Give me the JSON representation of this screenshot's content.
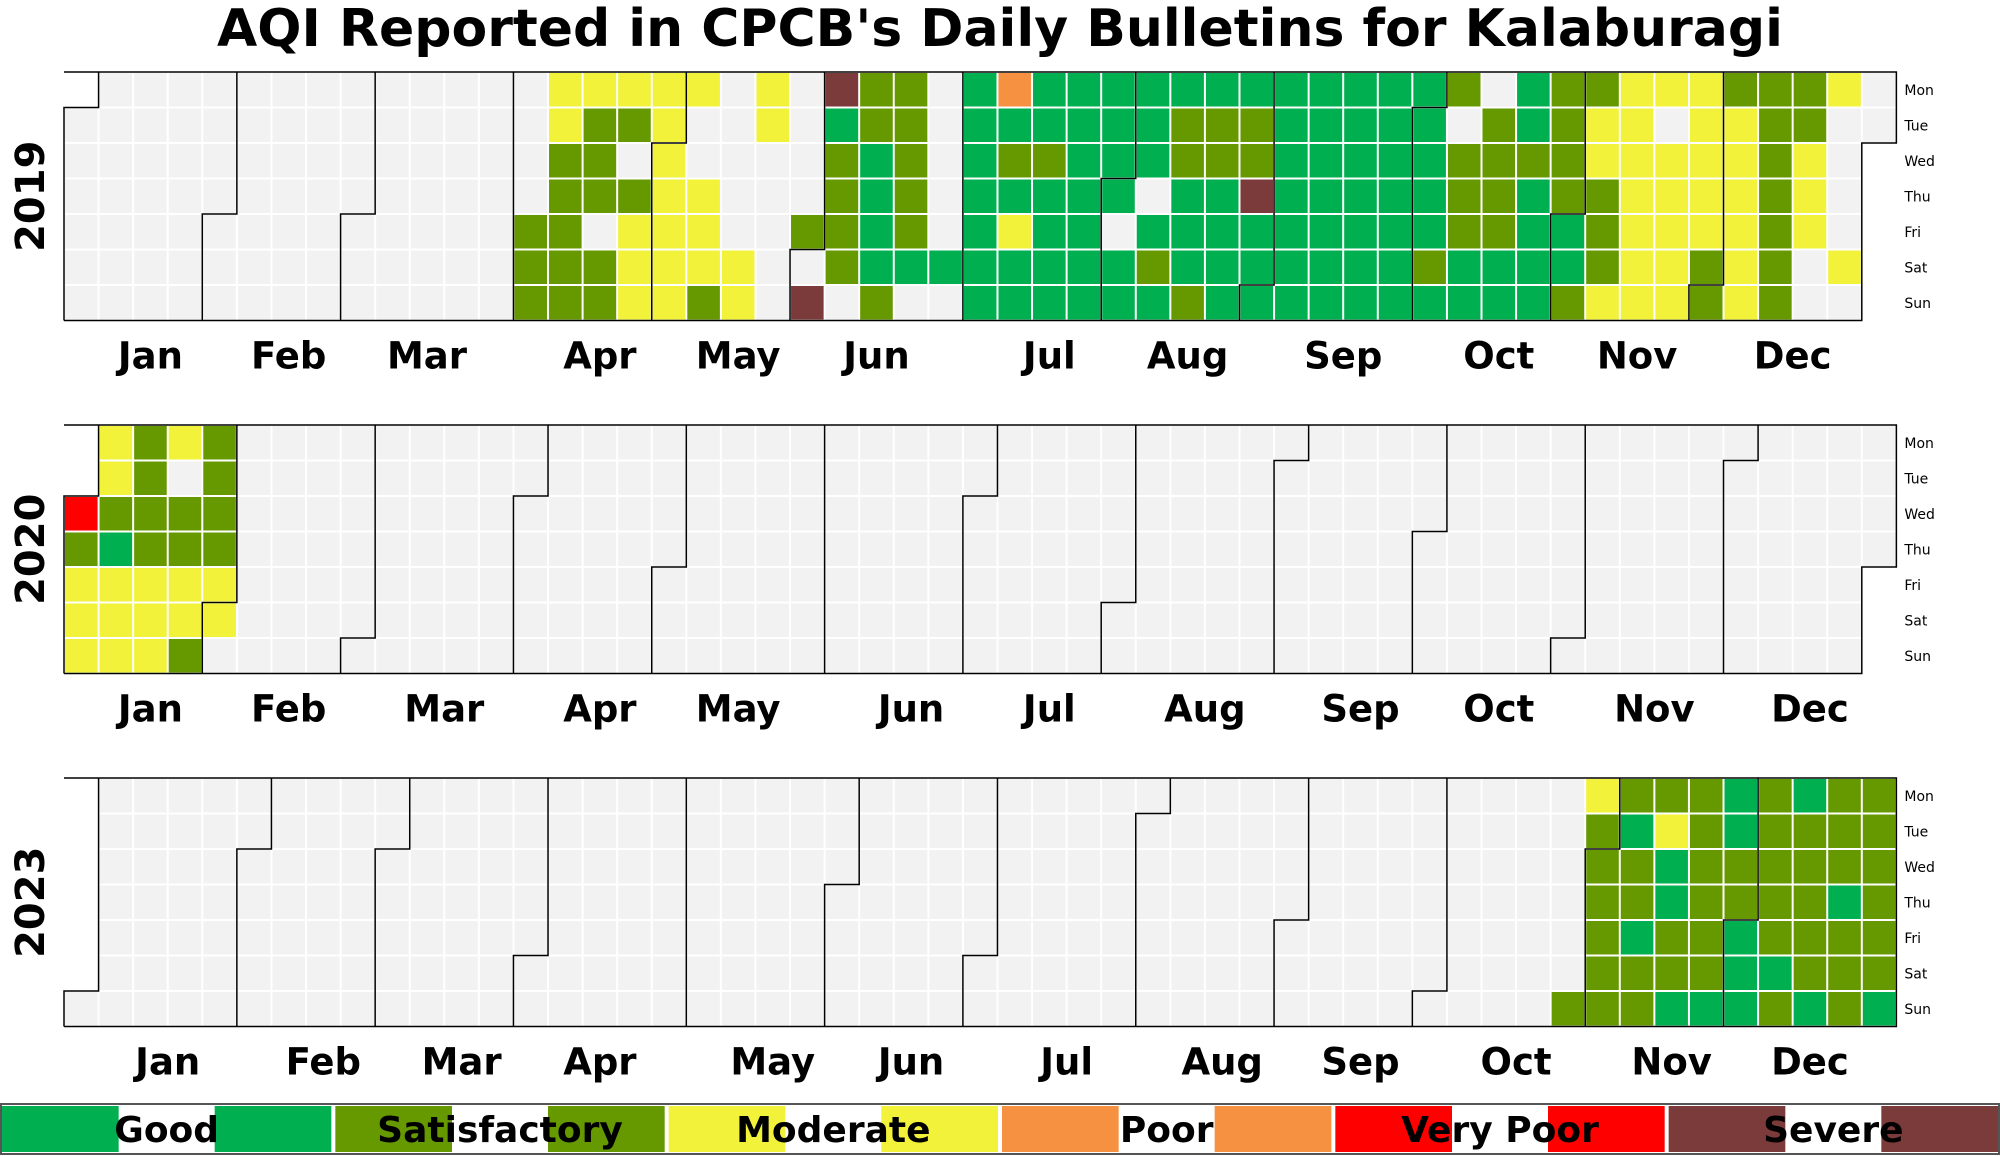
{
  "chart_data": {
    "type": "heatmap",
    "title": "AQI Reported in CPCB's Daily Bulletins for Kalaburagi",
    "weekday_labels": [
      "Mon",
      "Tue",
      "Wed",
      "Thu",
      "Fri",
      "Sat",
      "Sun"
    ],
    "month_labels": [
      "Jan",
      "Feb",
      "Mar",
      "Apr",
      "May",
      "Jun",
      "Jul",
      "Aug",
      "Sep",
      "Oct",
      "Nov",
      "Dec"
    ],
    "categories": [
      {
        "code": "G",
        "name": "Good",
        "color": "#00b050"
      },
      {
        "code": "S",
        "name": "Satisfactory",
        "color": "#669900"
      },
      {
        "code": "M",
        "name": "Moderate",
        "color": "#f2f23a"
      },
      {
        "code": "P",
        "name": "Poor",
        "color": "#f59141"
      },
      {
        "code": "V",
        "name": "Very Poor",
        "color": "#ff0000"
      },
      {
        "code": "X",
        "name": "Severe",
        "color": "#7b3b3b"
      }
    ],
    "empty_color": "#f2f2f2",
    "years": [
      {
        "year": 2019,
        "start_week": "2018-12-31",
        "days_by_week_mon_to_sun": [
          ".......",
          ".......",
          ".......",
          ".......",
          ".......",
          ".......",
          ".......",
          ".......",
          ".......",
          ".......",
          ".......",
          ".......",
          ".......",
          "....SSS",
          "MMSSSSS",
          "MSSS.SS",
          "MS.SMMM",
          "MMMMMMM",
          "M..MMMS",
          ".....MM",
          "MM.....",
          "....S.X",
          "XGSSSS.",
          "SSGGGGS",
          "SSSSSG.",
          ".....G.",
          "GGGGGGG",
          "PGSGMGG",
          "GGSGGGG",
          "GGGGGGG",
          "GGGG.GG",
          "GGG.GSG",
          "GSSGGGS",
          "GSSGGGG",
          "GSSXGGG",
          "GGGGGGG",
          "GGGGGGG",
          "GGGGGGG",
          "GGGGGGG",
          "GGGGGSG",
          "S.SSSGG",
          ".SSSSGG",
          "GGSGGGG",
          "SSSSGGS",
          "SMMSSSM",
          "MMMMMMM",
          "M.MMMMM",
          "MMMMMSS",
          "SMMMMMM",
          "SSSSSSS",
          "SSMMM..",
          "M....M."
        ]
      },
      {
        "year": 2020,
        "start_week": "2019-12-30",
        "days_by_week_mon_to_sun": [
          "..VSMMM",
          "MMSGMMM",
          "SSSSMMM",
          "M.SSMMS",
          "SSSSMM."
        ]
      },
      {
        "year": 2023,
        "start_week": "2022-12-26",
        "last_week_rows": 7,
        "days_by_week_mon_to_sun": [
          "......S",
          "MSSSSSS",
          "SGSSGSS",
          "SMGGSSG",
          "SSSSSSG",
          "GGSSGGG",
          "SSSSSGS",
          "GSSSSSG",
          "SSSGSSS",
          "SSSSSSG"
        ],
        "days_start_week_index": 44
      }
    ]
  }
}
